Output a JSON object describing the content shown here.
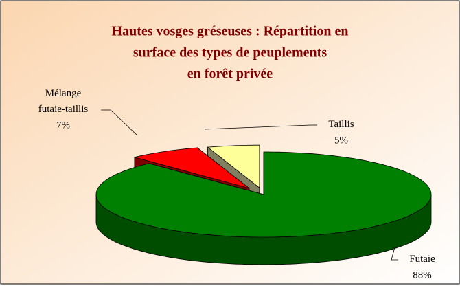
{
  "chart_data": {
    "type": "pie",
    "title": [
      "Hautes vosges gréseuses : Répartition en",
      "surface des types de peuplements",
      "en forêt privée"
    ],
    "categories": [
      "Futaie",
      "Mélange futaie-taillis",
      "Taillis"
    ],
    "values": [
      88,
      7,
      5
    ],
    "value_labels": [
      "88%",
      "7%",
      "5%"
    ],
    "colors": [
      "#008000",
      "#ff0000",
      "#ffff99"
    ],
    "side_colors": [
      "#004d00",
      "#800000",
      "#808060"
    ]
  }
}
